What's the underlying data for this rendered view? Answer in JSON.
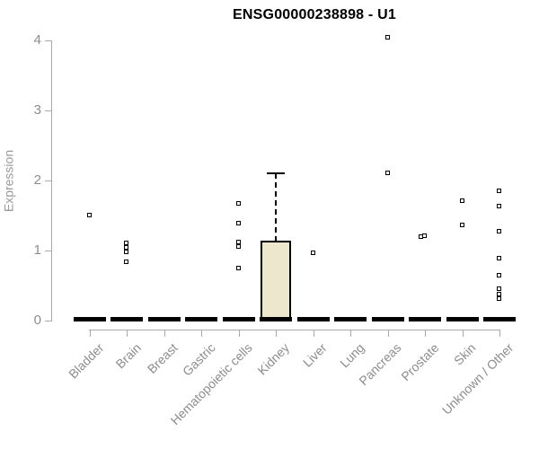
{
  "title": "ENSG00000238898 - U1",
  "colors": {
    "box_fill": "#EDE7CD",
    "axis_line": "#a9a9a9",
    "tick_label": "#8c8c8c",
    "marker": "#000000",
    "background": "#ffffff"
  },
  "chart_data": {
    "type": "boxplot",
    "title": "ENSG00000238898 - U1",
    "xlabel": "",
    "ylabel": "Expression",
    "ylim": [
      0,
      4
    ],
    "yticks": [
      0,
      1,
      2,
      3,
      4
    ],
    "grid": false,
    "legend": false,
    "categories": [
      "Bladder",
      "Brain",
      "Breast",
      "Gastric",
      "Hematopoietic cells",
      "Kidney",
      "Liver",
      "Lung",
      "Pancreas",
      "Prostate",
      "Skin",
      "Unknown / Other"
    ],
    "boxes": [
      {
        "category": "Bladder",
        "median": 0,
        "q1": 0,
        "q3": 0,
        "whisker_low": 0,
        "whisker_high": 0,
        "outliers": [
          1.5
        ]
      },
      {
        "category": "Brain",
        "median": 0,
        "q1": 0,
        "q3": 0,
        "whisker_low": 0,
        "whisker_high": 0,
        "outliers": [
          1.1,
          1.04,
          0.97,
          0.83
        ]
      },
      {
        "category": "Breast",
        "median": 0,
        "q1": 0,
        "q3": 0,
        "whisker_low": 0,
        "whisker_high": 0,
        "outliers": []
      },
      {
        "category": "Gastric",
        "median": 0,
        "q1": 0,
        "q3": 0,
        "whisker_low": 0,
        "whisker_high": 0,
        "outliers": []
      },
      {
        "category": "Hematopoietic cells",
        "median": 0,
        "q1": 0,
        "q3": 0,
        "whisker_low": 0,
        "whisker_high": 0,
        "outliers": [
          1.67,
          1.38,
          1.12,
          1.05,
          0.74
        ]
      },
      {
        "category": "Kidney",
        "median": 0,
        "q1": 0,
        "q3": 1.13,
        "whisker_low": 0,
        "whisker_high": 2.1,
        "outliers": []
      },
      {
        "category": "Liver",
        "median": 0,
        "q1": 0,
        "q3": 0,
        "whisker_low": 0,
        "whisker_high": 0,
        "outliers": [
          0.96
        ]
      },
      {
        "category": "Lung",
        "median": 0,
        "q1": 0,
        "q3": 0,
        "whisker_low": 0,
        "whisker_high": 0,
        "outliers": []
      },
      {
        "category": "Pancreas",
        "median": 0,
        "q1": 0,
        "q3": 0,
        "whisker_low": 0,
        "whisker_high": 0,
        "outliers": [
          4.04,
          2.1
        ]
      },
      {
        "category": "Prostate",
        "median": 0,
        "q1": 0,
        "q3": 0,
        "whisker_low": 0,
        "whisker_high": 0,
        "outliers": [
          1.21,
          1.19
        ]
      },
      {
        "category": "Skin",
        "median": 0,
        "q1": 0,
        "q3": 0,
        "whisker_low": 0,
        "whisker_high": 0,
        "outliers": [
          1.71,
          1.36
        ]
      },
      {
        "category": "Unknown / Other",
        "median": 0,
        "q1": 0,
        "q3": 0,
        "whisker_low": 0,
        "whisker_high": 0,
        "outliers": [
          1.85,
          1.63,
          1.27,
          0.88,
          0.64,
          0.45,
          0.37,
          0.31
        ]
      }
    ]
  }
}
